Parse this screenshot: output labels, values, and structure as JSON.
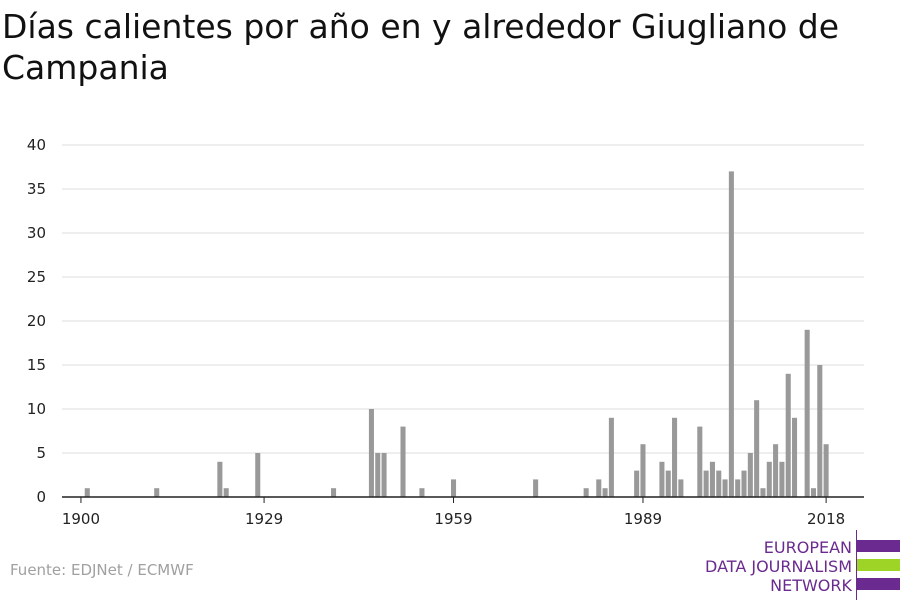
{
  "title": "Días calientes por año en y alrededor Giugliano de Campania",
  "source": "Fuente: EDJNet / ECMWF",
  "logo": {
    "line1": "EUROPEAN",
    "line2": "DATA JOURNALISM",
    "line3": "NETWORK",
    "colors": {
      "purple": "#6b2a8f",
      "green": "#9ed425"
    }
  },
  "chart_data": {
    "type": "bar",
    "title": "",
    "xlabel": "",
    "ylabel": "",
    "color": "#999999",
    "ylim": [
      0,
      40
    ],
    "xlim": [
      1897,
      2024
    ],
    "yticks": [
      0,
      5,
      10,
      15,
      20,
      25,
      30,
      35,
      40
    ],
    "xticks": [
      1900,
      1929,
      1959,
      1989,
      2018
    ],
    "grid": true,
    "x": [
      1901,
      1912,
      1922,
      1923,
      1928,
      1940,
      1946,
      1947,
      1948,
      1951,
      1954,
      1959,
      1972,
      1980,
      1982,
      1983,
      1984,
      1988,
      1989,
      1992,
      1993,
      1994,
      1995,
      1998,
      1999,
      2000,
      2001,
      2002,
      2003,
      2004,
      2005,
      2006,
      2007,
      2008,
      2009,
      2010,
      2011,
      2012,
      2013,
      2014,
      2015,
      2016,
      2017,
      2018
    ],
    "values": [
      1,
      1,
      4,
      1,
      5,
      1,
      10,
      5,
      5,
      8,
      1,
      2,
      2,
      1,
      2,
      1,
      9,
      3,
      6,
      4,
      3,
      9,
      2,
      8,
      3,
      4,
      3,
      2,
      37,
      2,
      3,
      5,
      11,
      1,
      4,
      6,
      4,
      14,
      9,
      0,
      19,
      1,
      15,
      6
    ]
  }
}
